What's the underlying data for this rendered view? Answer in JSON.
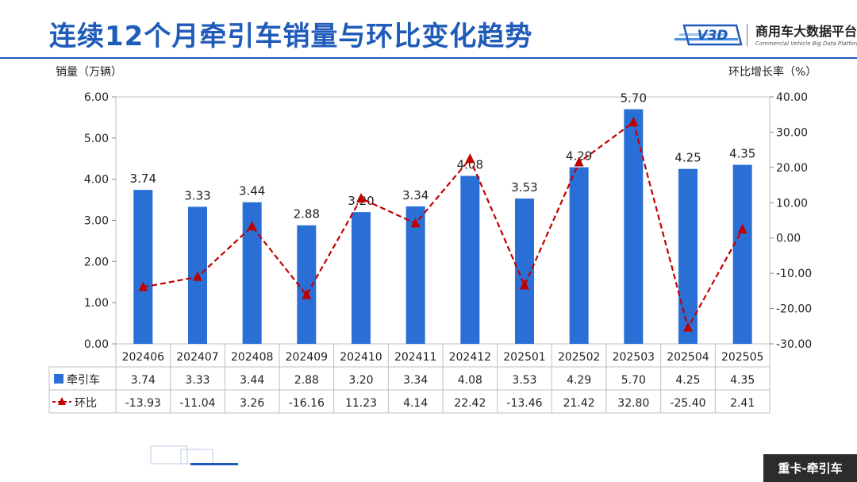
{
  "header": {
    "title": "连续12个月牵引车销量与环比变化趋势",
    "logo_cn": "商用车大数据平台",
    "logo_en": "Commercial Vehicle Big Data Platform",
    "logo_mark": "V3D",
    "footer_tag": "重卡-牵引车"
  },
  "colors": {
    "bar": "#2a6fd6",
    "line": "#c00000",
    "title": "#1f5bb8"
  },
  "chart_data": {
    "type": "bar",
    "categories": [
      "202406",
      "202407",
      "202408",
      "202409",
      "202410",
      "202411",
      "202412",
      "202501",
      "202502",
      "202503",
      "202504",
      "202505"
    ],
    "series": [
      {
        "name": "牵引车",
        "type": "bar",
        "axis": "left",
        "values": [
          3.74,
          3.33,
          3.44,
          2.88,
          3.2,
          3.34,
          4.08,
          3.53,
          4.29,
          5.7,
          4.25,
          4.35
        ],
        "value_labels": [
          "3.74",
          "3.33",
          "3.44",
          "2.88",
          "3.20",
          "3.34",
          "4.08",
          "3.53",
          "4.29",
          "5.70",
          "4.25",
          "4.35"
        ]
      },
      {
        "name": "环比",
        "type": "line",
        "axis": "right",
        "values": [
          -13.93,
          -11.04,
          3.26,
          -16.16,
          11.23,
          4.14,
          22.42,
          -13.46,
          21.42,
          32.8,
          -25.4,
          2.41
        ],
        "value_labels": [
          "-13.93",
          "-11.04",
          "3.26",
          "-16.16",
          "11.23",
          "4.14",
          "22.42",
          "-13.46",
          "21.42",
          "32.80",
          "-25.40",
          "2.41"
        ]
      }
    ],
    "ylabel": "销量（万辆）",
    "y2label": "环比增长率（%）",
    "ylim": [
      0,
      6
    ],
    "y2lim": [
      -30,
      40
    ],
    "yticks": [
      "0.00",
      "1.00",
      "2.00",
      "3.00",
      "4.00",
      "5.00",
      "6.00"
    ],
    "y2ticks": [
      "-30.00",
      "-20.00",
      "-10.00",
      "0.00",
      "10.00",
      "20.00",
      "30.00",
      "40.00"
    ],
    "grid": false,
    "legend": "data-table"
  }
}
